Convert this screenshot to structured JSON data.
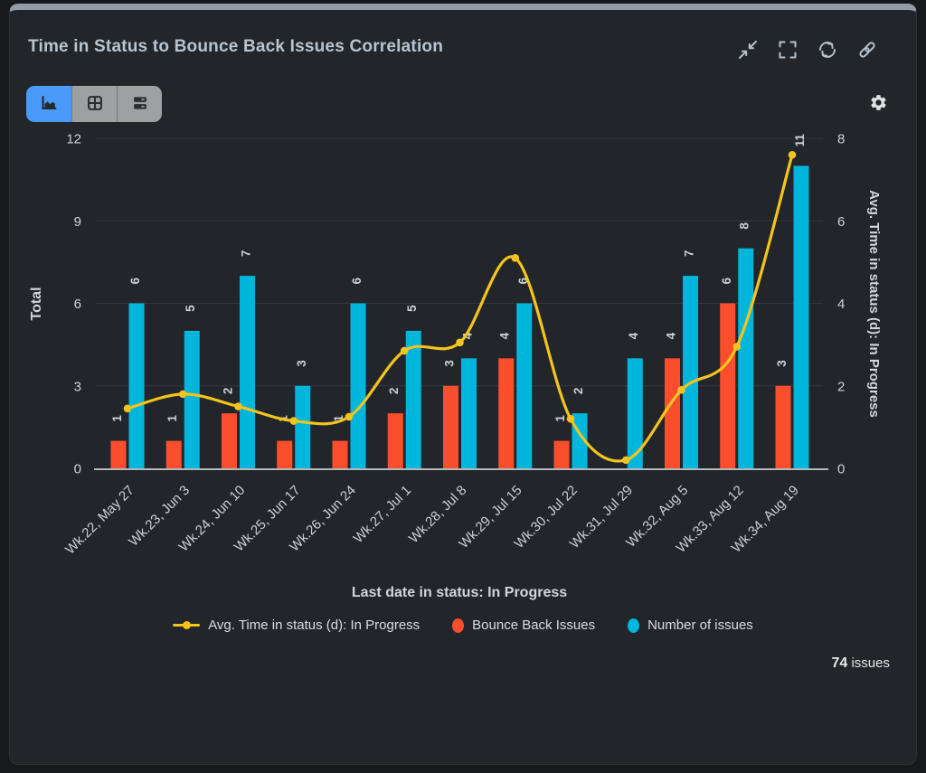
{
  "header": {
    "title": "Time in Status to Bounce Back Issues Correlation",
    "icons": [
      {
        "name": "collapse-icon"
      },
      {
        "name": "fullscreen-icon"
      },
      {
        "name": "refresh-icon"
      },
      {
        "name": "link-icon"
      }
    ]
  },
  "toolbar": {
    "views": [
      {
        "name": "chart-view",
        "icon": "area-chart-icon",
        "active": true
      },
      {
        "name": "table-view",
        "icon": "table-icon",
        "active": false
      },
      {
        "name": "rows-view",
        "icon": "rows-icon",
        "active": false
      }
    ],
    "settings_icon": "gear-icon",
    "active_color": "#4a9afc",
    "inactive_color": "#9fa0a2"
  },
  "chart_data": {
    "type": "bar",
    "categories": [
      "Wk.22, May 27",
      "Wk.23, Jun 3",
      "Wk.24, Jun 10",
      "Wk.25, Jun 17",
      "Wk.26, Jun 24",
      "Wk.27, Jul 1",
      "Wk.28, Jul 8",
      "Wk.29, Jul 15",
      "Wk.30, Jul 22",
      "Wk.31, Jul 29",
      "Wk.32, Aug 5",
      "Wk.33, Aug 12",
      "Wk.34, Aug 19"
    ],
    "series": [
      {
        "name": "Avg. Time in status (d): In Progress",
        "kind": "line",
        "axis": "right",
        "color": "#f4c41c",
        "values": [
          1.45,
          1.8,
          1.5,
          1.15,
          1.25,
          2.85,
          3.05,
          5.1,
          1.2,
          0.2,
          1.9,
          2.95,
          7.6
        ]
      },
      {
        "name": "Bounce Back Issues",
        "kind": "bar",
        "axis": "left",
        "color": "#fb4e2d",
        "values": [
          1,
          1,
          2,
          1,
          1,
          2,
          3,
          4,
          1,
          0,
          4,
          6,
          3
        ]
      },
      {
        "name": "Number of issues",
        "kind": "bar",
        "axis": "left",
        "color": "#00b6dc",
        "values": [
          6,
          5,
          7,
          3,
          6,
          5,
          4,
          6,
          2,
          4,
          7,
          8,
          11
        ]
      }
    ],
    "left_axis": {
      "title": "Total",
      "ticks": [
        0,
        3,
        6,
        9,
        12
      ],
      "max": 12
    },
    "right_axis": {
      "title": "Avg. Time in status (d): In Progress",
      "ticks": [
        0,
        2,
        4,
        6,
        8
      ],
      "max": 8
    },
    "x_axis": {
      "title": "Last date in status: In Progress"
    },
    "grid": true,
    "legend_position": "bottom",
    "bar_value_labels": true
  },
  "footer": {
    "count": "74",
    "label": "issues"
  }
}
